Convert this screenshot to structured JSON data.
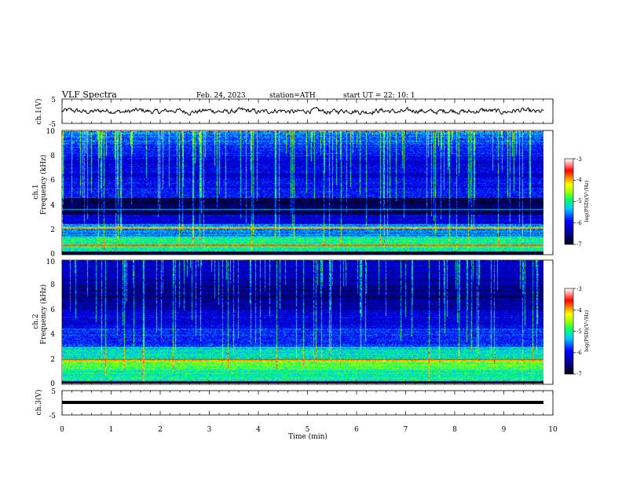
{
  "header": {
    "title": "VLF  Spectra",
    "date": "Feb. 24, 2023",
    "station": "station=ATH",
    "start": "start  UT  =   22: 10: 1"
  },
  "chart_data": [
    {
      "type": "line",
      "name": "ch1-waveform",
      "ylabel": "ch.1(V)",
      "ylim": [
        -5,
        5
      ],
      "yticks": [
        "5",
        "-5"
      ],
      "xlim": [
        0,
        10
      ]
    },
    {
      "type": "heatmap",
      "name": "ch1-spectrogram",
      "ylabel_top": "ch.1",
      "ylabel": "Frequency  (kHz)",
      "ylim": [
        0,
        10
      ],
      "yticks": [
        "0",
        "2",
        "4",
        "6",
        "8",
        "10"
      ],
      "xlim": [
        0,
        9.8
      ],
      "colorbar": {
        "label": "log(PSD)(V²/Hz)",
        "range": [
          -7,
          -3
        ],
        "ticks": [
          "-3",
          "-4",
          "-5",
          "-6",
          "-7"
        ]
      }
    },
    {
      "type": "heatmap",
      "name": "ch2-spectrogram",
      "ylabel_top": "ch.2",
      "ylabel": "Frequency  (kHz)",
      "ylim": [
        0,
        10
      ],
      "yticks": [
        "0",
        "2",
        "4",
        "6",
        "8",
        "10"
      ],
      "xlim": [
        0,
        9.8
      ],
      "colorbar": {
        "label": "log(PSD)(V²/Hz)",
        "range": [
          -7,
          -3
        ],
        "ticks": [
          "-3",
          "-4",
          "-5",
          "-6",
          "-7"
        ]
      }
    },
    {
      "type": "line",
      "name": "ch3-waveform",
      "ylabel": "ch.3(V)",
      "ylim": [
        -5,
        5
      ],
      "yticks": [
        "5",
        "-5"
      ],
      "xlabel": "Time  (min)",
      "xlim": [
        0,
        10
      ],
      "xticks": [
        "0",
        "1",
        "2",
        "3",
        "4",
        "5",
        "6",
        "7",
        "8",
        "9",
        "10"
      ]
    }
  ]
}
